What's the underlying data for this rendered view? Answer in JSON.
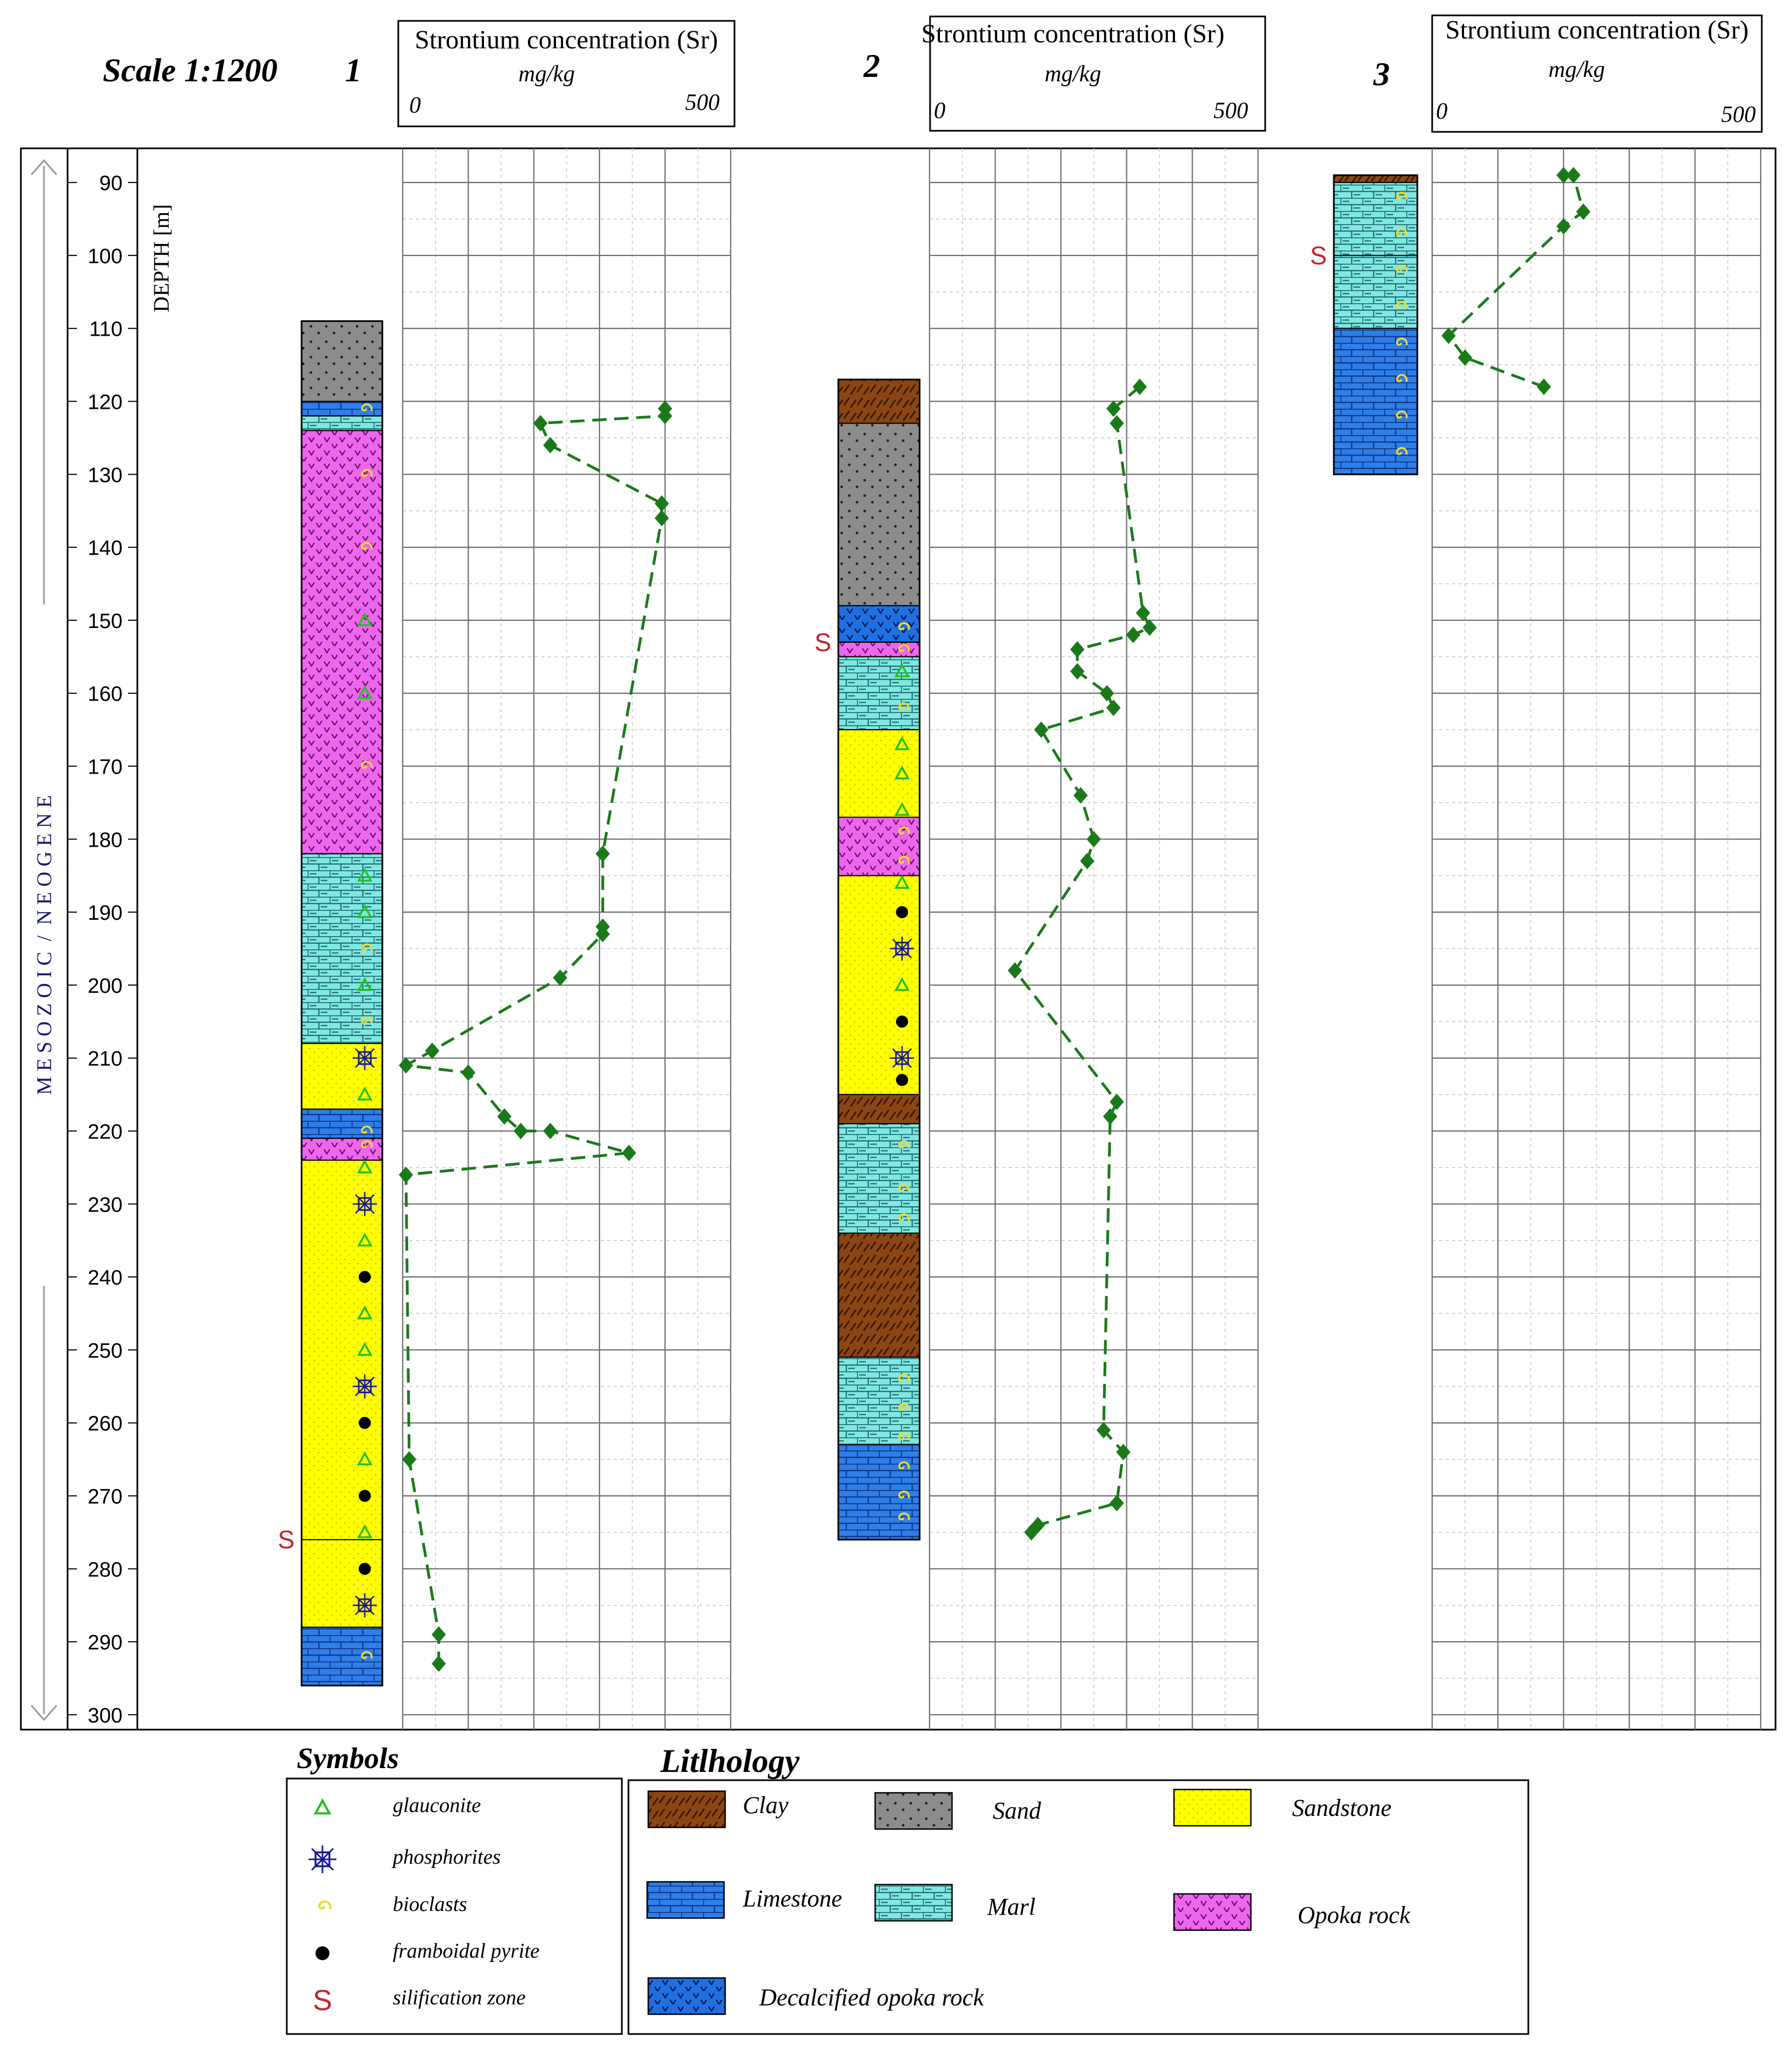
{
  "header": {
    "scale": "Scale 1:1200",
    "depth_label": "DEPTH [m]",
    "era_label": "M E S O Z O I C  /  N E O G E N E"
  },
  "wells": [
    {
      "number": "1",
      "box_title": "Strontium concentration (Sr)",
      "box_unit": "mg/kg",
      "box_min": "0",
      "box_max": "500"
    },
    {
      "number": "2",
      "box_title": "Strontium concentration (Sr)",
      "box_unit": "mg/kg",
      "box_min": "0",
      "box_max": "500"
    },
    {
      "number": "3",
      "box_title": "Strontium concentration (Sr)",
      "box_unit": "mg/kg",
      "box_min": "0",
      "box_max": "500"
    }
  ],
  "legend": {
    "symbols_title": "Symbols",
    "symbols": [
      {
        "label": "glauconite",
        "icon": "triangle-icon"
      },
      {
        "label": "phosphorites",
        "icon": "phosphorite-icon"
      },
      {
        "label": "bioclasts",
        "icon": "spiral-icon"
      },
      {
        "label": "framboidal pyrite",
        "icon": "dot-icon"
      },
      {
        "label": "silification zone",
        "icon": "s-icon"
      }
    ],
    "lithology_title": "Litlhology",
    "lithology": [
      {
        "label": "Clay",
        "pattern": "clay"
      },
      {
        "label": "Sand",
        "pattern": "sand"
      },
      {
        "label": "Sandstone",
        "pattern": "sandstone"
      },
      {
        "label": "Limestone",
        "pattern": "limestone"
      },
      {
        "label": "Marl",
        "pattern": "marl"
      },
      {
        "label": "Opoka rock",
        "pattern": "opoka"
      },
      {
        "label": "Decalcified opoka rock",
        "pattern": "decalc"
      }
    ]
  },
  "colors": {
    "series": "#1a7a1a",
    "clay": "#8b4513",
    "sand": "#8c8c8c",
    "sandstone": "#ffff00",
    "limestone": "#2e7ee8",
    "marl": "#7fe8e0",
    "opoka": "#ee66ee",
    "decalc": "#1f6fe0"
  },
  "chart_data": [
    {
      "type": "line",
      "title": "Strontium concentration (Sr)",
      "xlabel": "Strontium concentration (Sr) mg/kg",
      "ylabel": "DEPTH [m]",
      "xlim": [
        0,
        500
      ],
      "ylim": [
        300,
        86
      ],
      "y_ticks": [
        90,
        100,
        110,
        120,
        130,
        140,
        150,
        160,
        170,
        180,
        190,
        200,
        210,
        220,
        230,
        240,
        250,
        260,
        270,
        280,
        290,
        300
      ],
      "grid": true,
      "series": [
        {
          "name": "1",
          "points": [
            [
              400,
              121
            ],
            [
              400,
              122
            ],
            [
              210,
              123
            ],
            [
              225,
              126
            ],
            [
              395,
              134
            ],
            [
              395,
              136
            ],
            [
              305,
              182
            ],
            [
              305,
              192
            ],
            [
              305,
              193
            ],
            [
              240,
              199
            ],
            [
              45,
              209
            ],
            [
              5,
              211
            ],
            [
              100,
              212
            ],
            [
              155,
              218
            ],
            [
              180,
              220
            ],
            [
              225,
              220
            ],
            [
              345,
              223
            ],
            [
              5,
              226
            ],
            [
              10,
              265
            ],
            [
              55,
              289
            ],
            [
              55,
              293
            ]
          ]
        },
        {
          "name": "2",
          "points": [
            [
              320,
              118
            ],
            [
              280,
              121
            ],
            [
              285,
              123
            ],
            [
              325,
              149
            ],
            [
              335,
              151
            ],
            [
              310,
              152
            ],
            [
              225,
              154
            ],
            [
              225,
              157
            ],
            [
              270,
              160
            ],
            [
              280,
              162
            ],
            [
              170,
              165
            ],
            [
              230,
              174
            ],
            [
              250,
              180
            ],
            [
              240,
              183
            ],
            [
              130,
              198
            ],
            [
              285,
              216
            ],
            [
              275,
              218
            ],
            [
              265,
              261
            ],
            [
              295,
              264
            ],
            [
              285,
              271
            ],
            [
              165,
              274
            ],
            [
              155,
              275
            ]
          ]
        },
        {
          "name": "3",
          "points": [
            [
              200,
              89
            ],
            [
              215,
              89
            ],
            [
              230,
              94
            ],
            [
              200,
              96
            ],
            [
              25,
              111
            ],
            [
              50,
              114
            ],
            [
              170,
              118
            ]
          ]
        }
      ]
    }
  ],
  "columns": [
    {
      "well": "1",
      "layers": [
        {
          "top": 109,
          "bottom": 120,
          "lith": "sand"
        },
        {
          "top": 120,
          "bottom": 122,
          "lith": "limestone"
        },
        {
          "top": 122,
          "bottom": 124,
          "lith": "marl"
        },
        {
          "top": 124,
          "bottom": 182,
          "lith": "opoka"
        },
        {
          "top": 182,
          "bottom": 208,
          "lith": "marl"
        },
        {
          "top": 208,
          "bottom": 217,
          "lith": "sandstone"
        },
        {
          "top": 217,
          "bottom": 221,
          "lith": "limestone"
        },
        {
          "top": 221,
          "bottom": 224,
          "lith": "opoka"
        },
        {
          "top": 224,
          "bottom": 288,
          "lith": "sandstone"
        },
        {
          "top": 288,
          "bottom": 296,
          "lith": "limestone"
        }
      ],
      "symbols": [
        {
          "depth": 121,
          "sym": "spiral"
        },
        {
          "depth": 130,
          "sym": "spiral"
        },
        {
          "depth": 140,
          "sym": "spiral"
        },
        {
          "depth": 150,
          "sym": "triangle"
        },
        {
          "depth": 160,
          "sym": "triangle"
        },
        {
          "depth": 170,
          "sym": "spiral"
        },
        {
          "depth": 185,
          "sym": "triangle"
        },
        {
          "depth": 190,
          "sym": "triangle"
        },
        {
          "depth": 195,
          "sym": "spiral"
        },
        {
          "depth": 200,
          "sym": "triangle"
        },
        {
          "depth": 205,
          "sym": "spiral"
        },
        {
          "depth": 210,
          "sym": "phosphorite"
        },
        {
          "depth": 215,
          "sym": "triangle"
        },
        {
          "depth": 220,
          "sym": "spiral"
        },
        {
          "depth": 222,
          "sym": "spiral"
        },
        {
          "depth": 225,
          "sym": "triangle"
        },
        {
          "depth": 230,
          "sym": "phosphorite"
        },
        {
          "depth": 235,
          "sym": "triangle"
        },
        {
          "depth": 240,
          "sym": "dot"
        },
        {
          "depth": 245,
          "sym": "triangle"
        },
        {
          "depth": 250,
          "sym": "triangle"
        },
        {
          "depth": 255,
          "sym": "phosphorite"
        },
        {
          "depth": 260,
          "sym": "dot"
        },
        {
          "depth": 265,
          "sym": "triangle"
        },
        {
          "depth": 270,
          "sym": "dot"
        },
        {
          "depth": 275,
          "sym": "triangle"
        },
        {
          "depth": 280,
          "sym": "dot"
        },
        {
          "depth": 285,
          "sym": "phosphorite"
        },
        {
          "depth": 292,
          "sym": "spiral"
        }
      ],
      "silification": [
        276
      ]
    },
    {
      "well": "2",
      "layers": [
        {
          "top": 117,
          "bottom": 123,
          "lith": "clay"
        },
        {
          "top": 123,
          "bottom": 148,
          "lith": "sand"
        },
        {
          "top": 148,
          "bottom": 153,
          "lith": "decalc"
        },
        {
          "top": 153,
          "bottom": 155,
          "lith": "opoka"
        },
        {
          "top": 155,
          "bottom": 165,
          "lith": "marl"
        },
        {
          "top": 165,
          "bottom": 177,
          "lith": "sandstone"
        },
        {
          "top": 177,
          "bottom": 185,
          "lith": "opoka"
        },
        {
          "top": 185,
          "bottom": 215,
          "lith": "sandstone"
        },
        {
          "top": 215,
          "bottom": 219,
          "lith": "clay"
        },
        {
          "top": 219,
          "bottom": 234,
          "lith": "marl"
        },
        {
          "top": 234,
          "bottom": 251,
          "lith": "clay"
        },
        {
          "top": 251,
          "bottom": 263,
          "lith": "marl"
        },
        {
          "top": 263,
          "bottom": 276,
          "lith": "limestone"
        }
      ],
      "symbols": [
        {
          "depth": 151,
          "sym": "spiral"
        },
        {
          "depth": 154,
          "sym": "spiral"
        },
        {
          "depth": 157,
          "sym": "triangle"
        },
        {
          "depth": 162,
          "sym": "spiral"
        },
        {
          "depth": 167,
          "sym": "triangle"
        },
        {
          "depth": 171,
          "sym": "triangle"
        },
        {
          "depth": 176,
          "sym": "triangle"
        },
        {
          "depth": 179,
          "sym": "spiral"
        },
        {
          "depth": 183,
          "sym": "spiral"
        },
        {
          "depth": 186,
          "sym": "triangle"
        },
        {
          "depth": 190,
          "sym": "dot"
        },
        {
          "depth": 195,
          "sym": "phosphorite"
        },
        {
          "depth": 200,
          "sym": "triangle"
        },
        {
          "depth": 205,
          "sym": "dot"
        },
        {
          "depth": 210,
          "sym": "phosphorite"
        },
        {
          "depth": 213,
          "sym": "dot"
        },
        {
          "depth": 222,
          "sym": "spiral"
        },
        {
          "depth": 228,
          "sym": "spiral"
        },
        {
          "depth": 232,
          "sym": "spiral"
        },
        {
          "depth": 254,
          "sym": "spiral"
        },
        {
          "depth": 258,
          "sym": "spiral"
        },
        {
          "depth": 262,
          "sym": "spiral"
        },
        {
          "depth": 266,
          "sym": "spiral"
        },
        {
          "depth": 270,
          "sym": "spiral"
        },
        {
          "depth": 273,
          "sym": "spiral"
        }
      ],
      "silification": [
        153
      ]
    },
    {
      "well": "3",
      "layers": [
        {
          "top": 89,
          "bottom": 90,
          "lith": "clay"
        },
        {
          "top": 90,
          "bottom": 110,
          "lith": "marl"
        },
        {
          "top": 110,
          "bottom": 130,
          "lith": "limestone"
        }
      ],
      "symbols": [
        {
          "depth": 92,
          "sym": "spiral"
        },
        {
          "depth": 97,
          "sym": "spiral"
        },
        {
          "depth": 102,
          "sym": "spiral"
        },
        {
          "depth": 107,
          "sym": "spiral"
        },
        {
          "depth": 112,
          "sym": "spiral"
        },
        {
          "depth": 117,
          "sym": "spiral"
        },
        {
          "depth": 122,
          "sym": "spiral"
        },
        {
          "depth": 127,
          "sym": "spiral"
        }
      ],
      "silification": [
        100
      ]
    }
  ]
}
